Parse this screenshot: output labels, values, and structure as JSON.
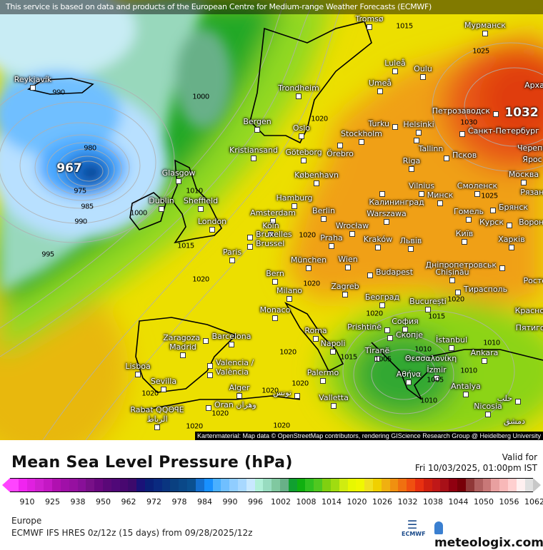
{
  "banner": "This service is based on data and products of the European Centre for Medium-range Weather Forecasts (ECMWF)",
  "attribution": "Kartenmaterial: Map data © OpenStreetMap contributors, rendering GIScience Research Group @ Heidelberg University",
  "map": {
    "pressure_centers": [
      {
        "label": "967",
        "type": "low"
      },
      {
        "label": "1032",
        "type": "high"
      }
    ],
    "isobar_labels": [
      "980",
      "975",
      "985",
      "990",
      "995",
      "990",
      "1000",
      "1000",
      "1010",
      "1015",
      "1020",
      "1020",
      "1015",
      "1025",
      "1030",
      "1025",
      "1020",
      "1020",
      "1020",
      "1015",
      "1020",
      "1010",
      "1015",
      "1005",
      "1005",
      "1010",
      "1010",
      "1010",
      "1020",
      "1020",
      "1020",
      "1020",
      "1020",
      "1020",
      "1020"
    ],
    "cities": [
      "Tromsø",
      "Мурманск",
      "Reykjavík",
      "Luleå",
      "Oulu",
      "Umeå",
      "Арха",
      "Trondheim",
      "Петрозаводск",
      "Bergen",
      "Oslo",
      "Helsinki",
      "Turku",
      "Санкт-Петербург",
      "Stockholm",
      "Черепо",
      "Örebro",
      "Ярос",
      "Tallinn",
      "Kristiansand",
      "Göteborg",
      "Glasgow",
      "Riga",
      "Псков",
      "København",
      "Москва",
      "Vilnius",
      "Смоленск",
      "Dublin",
      "Sheffield",
      "Hamburg",
      "Калининград",
      "Минск",
      "Рязань",
      "Amsterdam",
      "Berlin",
      "Брянск",
      "Warszawa",
      "Гомель",
      "London",
      "Köln",
      "Wrocław",
      "Курск",
      "Воронеж",
      "Bruxelles",
      "Brussel",
      "Praha",
      "Kraków",
      "Львів",
      "Київ",
      "Харків",
      "Paris",
      "München",
      "Wien",
      "Дніпропетровськ",
      "Ростов",
      "Budapest",
      "Chișinău",
      "Bern",
      "Тирасполь",
      "Milano",
      "Zagreb",
      "Београд",
      "București",
      "Краснодар",
      "Monaco",
      "Пятигорск",
      "Prishtinë",
      "София",
      "Roma",
      "Zaragoza",
      "Barcelona",
      "Скопје",
      "İstanbul",
      "Napoli",
      "Tiranë",
      "Madrid",
      "Valencia /",
      "València",
      "Θεσσαλονίκη",
      "Ankara",
      "Lisboa",
      "Αθήνα",
      "İzmir",
      "Palermo",
      "Sevilla",
      "Alger",
      "تونس",
      "Antalya",
      "حلب",
      "Valletta",
      "Nicosia",
      "Rabat QQΘꟼE",
      "الرباط",
      "Oran وهران",
      "دمشق"
    ]
  },
  "legend": {
    "title": "Mean Sea Level Pressure (hPa)",
    "valid_label": "Valid for",
    "valid_time": "Fri 10/03/2025, 01:00pm IST",
    "ticks": [
      "910",
      "925",
      "938",
      "950",
      "962",
      "972",
      "978",
      "984",
      "990",
      "996",
      "1002",
      "1008",
      "1014",
      "1020",
      "1026",
      "1032",
      "1038",
      "1044",
      "1050",
      "1056",
      "1062"
    ],
    "colors": [
      "#ff44ff",
      "#f024f0",
      "#e020e0",
      "#d020d0",
      "#c418c4",
      "#b010b0",
      "#a010a8",
      "#9610a0",
      "#881098",
      "#781088",
      "#6a0880",
      "#5a0878",
      "#500878",
      "#480870",
      "#3c0a6c",
      "#1a1278",
      "#0a2078",
      "#0a2a80",
      "#0a3580",
      "#0a4080",
      "#0a4888",
      "#0a5090",
      "#1470d0",
      "#1890ff",
      "#4ab0ff",
      "#70bfff",
      "#90cdff",
      "#a8d8ff",
      "#c8e8ff",
      "#b0f0d8",
      "#98dcc0",
      "#80c8a0",
      "#68b088",
      "#10a030",
      "#10b010",
      "#30c020",
      "#50c820",
      "#80d010",
      "#a0dc10",
      "#d0ec10",
      "#e8f800",
      "#f0f800",
      "#f0e020",
      "#f0d000",
      "#f0b010",
      "#f09010",
      "#f07010",
      "#f05010",
      "#e83010",
      "#d02010",
      "#c01818",
      "#a81018",
      "#900010",
      "#780008",
      "#903838",
      "#b06060",
      "#c87878",
      "#e8a0a0",
      "#f8b8b8",
      "#ffd0d0",
      "#fff0f0",
      "#e0e0e0"
    ],
    "region": "Europe",
    "model": "ECMWF IFS HRES 0z/12z (15 days) from  09/28/2025/12z"
  },
  "logos": {
    "ecmwf": "ECMWF",
    "meteologix": "meteologix.com"
  }
}
